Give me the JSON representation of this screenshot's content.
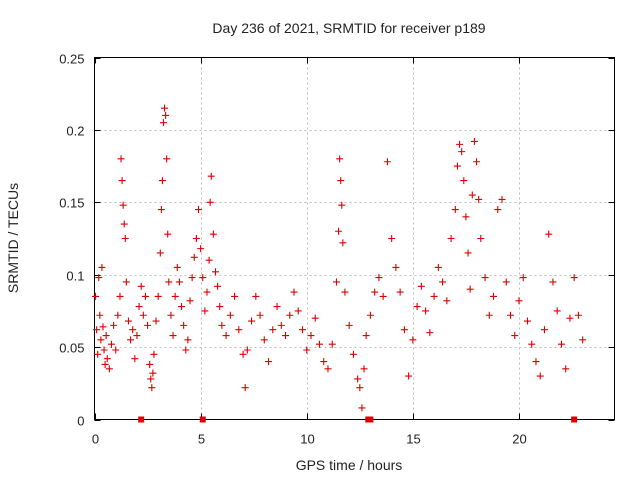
{
  "chart_data": {
    "type": "scatter",
    "title": "Day 236 of 2021, SRMTID for receiver p189",
    "xlabel": "GPS time / hours",
    "ylabel": "SRMTID / TECUs",
    "xlim": [
      0,
      24.5
    ],
    "ylim": [
      0,
      0.25
    ],
    "xticks": [
      0,
      5,
      10,
      15,
      20
    ],
    "yticks": [
      0,
      0.05,
      0.1,
      0.15,
      0.2,
      0.25
    ],
    "xtick_labels": [
      "0",
      "5",
      "10",
      "15",
      "20"
    ],
    "ytick_labels": [
      "0",
      "0.05",
      "0.1",
      "0.15",
      "0.2",
      "0.25"
    ],
    "grid": true,
    "marker": "plus",
    "color": "#dd0000",
    "data_span_hours": [
      0,
      23
    ],
    "series": [
      {
        "name": "SRMTID",
        "points": [
          [
            0.05,
            0.085
          ],
          [
            0.1,
            0.062
          ],
          [
            0.15,
            0.045
          ],
          [
            0.2,
            0.098
          ],
          [
            0.25,
            0.072
          ],
          [
            0.3,
            0.055
          ],
          [
            0.35,
            0.105
          ],
          [
            0.4,
            0.064
          ],
          [
            0.45,
            0.048
          ],
          [
            0.5,
            0.038
          ],
          [
            0.55,
            0.058
          ],
          [
            0.6,
            0.042
          ],
          [
            0.7,
            0.035
          ],
          [
            0.8,
            0.052
          ],
          [
            0.9,
            0.065
          ],
          [
            1.0,
            0.048
          ],
          [
            1.1,
            0.072
          ],
          [
            1.2,
            0.085
          ],
          [
            1.25,
            0.18
          ],
          [
            1.3,
            0.165
          ],
          [
            1.35,
            0.148
          ],
          [
            1.4,
            0.135
          ],
          [
            1.45,
            0.125
          ],
          [
            1.5,
            0.095
          ],
          [
            1.6,
            0.068
          ],
          [
            1.7,
            0.055
          ],
          [
            1.8,
            0.062
          ],
          [
            1.9,
            0.042
          ],
          [
            2.0,
            0.058
          ],
          [
            2.1,
            0.078
          ],
          [
            2.2,
            0.092
          ],
          [
            2.3,
            0.072
          ],
          [
            2.4,
            0.085
          ],
          [
            2.5,
            0.065
          ],
          [
            2.6,
            0.038
          ],
          [
            2.65,
            0.028
          ],
          [
            2.7,
            0.022
          ],
          [
            2.75,
            0.032
          ],
          [
            2.8,
            0.045
          ],
          [
            2.9,
            0.068
          ],
          [
            3.0,
            0.085
          ],
          [
            3.1,
            0.115
          ],
          [
            3.15,
            0.145
          ],
          [
            3.2,
            0.165
          ],
          [
            3.25,
            0.205
          ],
          [
            3.3,
            0.215
          ],
          [
            3.35,
            0.21
          ],
          [
            3.4,
            0.18
          ],
          [
            3.45,
            0.128
          ],
          [
            3.5,
            0.095
          ],
          [
            3.6,
            0.072
          ],
          [
            3.7,
            0.058
          ],
          [
            3.8,
            0.085
          ],
          [
            3.9,
            0.105
          ],
          [
            4.0,
            0.095
          ],
          [
            4.1,
            0.078
          ],
          [
            4.2,
            0.065
          ],
          [
            4.3,
            0.048
          ],
          [
            4.4,
            0.055
          ],
          [
            4.5,
            0.082
          ],
          [
            4.6,
            0.098
          ],
          [
            4.7,
            0.112
          ],
          [
            4.8,
            0.125
          ],
          [
            4.9,
            0.145
          ],
          [
            5.0,
            0.118
          ],
          [
            5.1,
            0.098
          ],
          [
            5.2,
            0.075
          ],
          [
            5.3,
            0.088
          ],
          [
            5.4,
            0.11
          ],
          [
            5.45,
            0.15
          ],
          [
            5.5,
            0.168
          ],
          [
            5.6,
            0.128
          ],
          [
            5.7,
            0.102
          ],
          [
            5.8,
            0.092
          ],
          [
            5.9,
            0.078
          ],
          [
            6.0,
            0.065
          ],
          [
            6.2,
            0.058
          ],
          [
            6.4,
            0.072
          ],
          [
            6.6,
            0.085
          ],
          [
            6.8,
            0.062
          ],
          [
            7.0,
            0.045
          ],
          [
            7.1,
            0.022
          ],
          [
            7.2,
            0.048
          ],
          [
            7.4,
            0.068
          ],
          [
            7.6,
            0.085
          ],
          [
            7.8,
            0.072
          ],
          [
            8.0,
            0.055
          ],
          [
            8.2,
            0.04
          ],
          [
            8.4,
            0.062
          ],
          [
            8.6,
            0.078
          ],
          [
            8.8,
            0.065
          ],
          [
            9.0,
            0.058
          ],
          [
            9.2,
            0.072
          ],
          [
            9.4,
            0.088
          ],
          [
            9.6,
            0.075
          ],
          [
            9.8,
            0.062
          ],
          [
            10.0,
            0.048
          ],
          [
            10.2,
            0.058
          ],
          [
            10.4,
            0.07
          ],
          [
            10.6,
            0.052
          ],
          [
            10.8,
            0.04
          ],
          [
            11.0,
            0.035
          ],
          [
            11.2,
            0.052
          ],
          [
            11.4,
            0.095
          ],
          [
            11.5,
            0.13
          ],
          [
            11.55,
            0.18
          ],
          [
            11.6,
            0.165
          ],
          [
            11.65,
            0.148
          ],
          [
            11.7,
            0.122
          ],
          [
            11.8,
            0.088
          ],
          [
            12.0,
            0.065
          ],
          [
            12.2,
            0.045
          ],
          [
            12.4,
            0.028
          ],
          [
            12.5,
            0.022
          ],
          [
            12.6,
            0.008
          ],
          [
            12.7,
            0.035
          ],
          [
            12.8,
            0.058
          ],
          [
            13.0,
            0.072
          ],
          [
            13.2,
            0.088
          ],
          [
            13.4,
            0.098
          ],
          [
            13.6,
            0.085
          ],
          [
            13.8,
            0.178
          ],
          [
            14.0,
            0.125
          ],
          [
            14.2,
            0.105
          ],
          [
            14.4,
            0.088
          ],
          [
            14.6,
            0.062
          ],
          [
            14.8,
            0.03
          ],
          [
            15.0,
            0.055
          ],
          [
            15.2,
            0.078
          ],
          [
            15.4,
            0.092
          ],
          [
            15.6,
            0.075
          ],
          [
            15.8,
            0.06
          ],
          [
            16.0,
            0.085
          ],
          [
            16.2,
            0.105
          ],
          [
            16.4,
            0.095
          ],
          [
            16.6,
            0.082
          ],
          [
            16.8,
            0.125
          ],
          [
            17.0,
            0.145
          ],
          [
            17.1,
            0.175
          ],
          [
            17.2,
            0.19
          ],
          [
            17.3,
            0.185
          ],
          [
            17.4,
            0.165
          ],
          [
            17.5,
            0.14
          ],
          [
            17.6,
            0.115
          ],
          [
            17.7,
            0.09
          ],
          [
            17.8,
            0.155
          ],
          [
            17.9,
            0.192
          ],
          [
            18.0,
            0.178
          ],
          [
            18.1,
            0.152
          ],
          [
            18.2,
            0.125
          ],
          [
            18.4,
            0.098
          ],
          [
            18.6,
            0.072
          ],
          [
            18.8,
            0.085
          ],
          [
            19.0,
            0.145
          ],
          [
            19.2,
            0.152
          ],
          [
            19.4,
            0.095
          ],
          [
            19.6,
            0.072
          ],
          [
            19.8,
            0.058
          ],
          [
            20.0,
            0.082
          ],
          [
            20.2,
            0.098
          ],
          [
            20.4,
            0.068
          ],
          [
            20.6,
            0.052
          ],
          [
            20.8,
            0.04
          ],
          [
            21.0,
            0.03
          ],
          [
            21.2,
            0.062
          ],
          [
            21.4,
            0.128
          ],
          [
            21.6,
            0.095
          ],
          [
            21.8,
            0.075
          ],
          [
            22.0,
            0.052
          ],
          [
            22.2,
            0.035
          ],
          [
            22.4,
            0.07
          ],
          [
            22.6,
            0.098
          ],
          [
            22.8,
            0.072
          ],
          [
            23.0,
            0.055
          ]
        ]
      }
    ],
    "markers_on_axis": [
      {
        "x": 2.2,
        "y": 0
      },
      {
        "x": 5.1,
        "y": 0
      },
      {
        "x": 12.9,
        "y": 0
      },
      {
        "x": 13.0,
        "y": 0
      },
      {
        "x": 22.6,
        "y": 0
      }
    ]
  }
}
